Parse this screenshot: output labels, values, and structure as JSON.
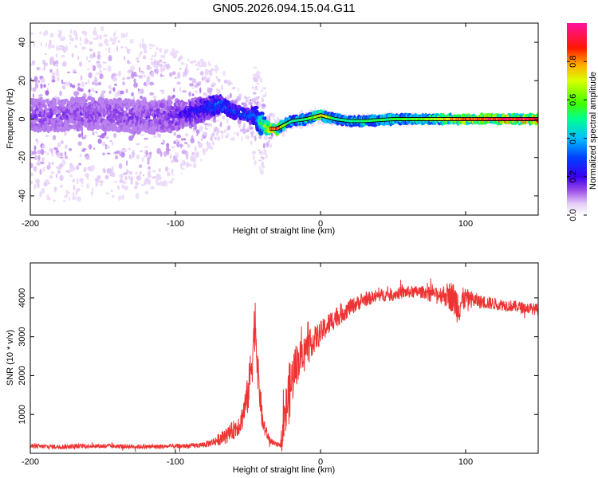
{
  "chart_data": [
    {
      "type": "heatmap",
      "title": "GN05.2026.094.15.04.G11",
      "xlabel": "Height of straight line (km)",
      "ylabel": "Frequency (Hz)",
      "xlim": [
        -200,
        150
      ],
      "ylim": [
        -50,
        50
      ],
      "xticks": [
        -200,
        -100,
        0,
        100
      ],
      "xtick_labels": [
        "-200",
        "-100",
        "0",
        "100"
      ],
      "yticks": [
        -40,
        -20,
        0,
        20,
        40
      ],
      "ytick_labels": [
        "-40",
        "-20",
        "0",
        "20",
        "40"
      ],
      "colorbar": {
        "label": "Normalized spectral amplitude",
        "range": [
          0,
          1
        ],
        "ticks": [
          0.0,
          0.2,
          0.4,
          0.6,
          0.8
        ],
        "tick_labels": [
          "0.0",
          "0.2",
          "0.4",
          "0.6",
          "0.8"
        ]
      },
      "main_band": {
        "x": [
          -200,
          -180,
          -160,
          -140,
          -120,
          -100,
          -80,
          -70,
          -60,
          -50,
          -45,
          -40,
          -35,
          -30,
          -25,
          -20,
          -10,
          0,
          10,
          20,
          30,
          50,
          70,
          90,
          110,
          130,
          150
        ],
        "center_freq": [
          2,
          2,
          3,
          2,
          1,
          2,
          5,
          8,
          4,
          2,
          2,
          -3,
          -5,
          -5,
          -3,
          -1,
          0,
          2,
          0,
          -1,
          -1,
          0,
          0,
          0,
          0,
          0,
          0
        ],
        "amplitude": [
          0.15,
          0.15,
          0.15,
          0.15,
          0.15,
          0.18,
          0.25,
          0.35,
          0.3,
          0.35,
          0.3,
          0.55,
          0.9,
          0.85,
          0.6,
          0.5,
          0.55,
          0.75,
          0.5,
          0.5,
          0.55,
          0.55,
          0.6,
          0.8,
          0.9,
          0.95,
          0.95
        ],
        "scatter_halfwidth_hz": [
          45,
          45,
          45,
          45,
          40,
          35,
          25,
          20,
          15,
          12,
          25,
          25,
          10,
          6,
          5,
          4,
          4,
          4,
          3,
          3,
          3,
          3,
          2,
          2,
          2,
          2,
          2
        ]
      }
    },
    {
      "type": "line",
      "xlabel": "Height of straight line (km)",
      "ylabel": "SNR (10 * v/v)",
      "xlim": [
        -200,
        150
      ],
      "ylim": [
        0,
        4900
      ],
      "xticks": [
        -200,
        -100,
        0,
        100
      ],
      "xtick_labels": [
        "-200",
        "-100",
        "0",
        "100"
      ],
      "yticks": [
        1000,
        2000,
        3000,
        4000
      ],
      "ytick_labels": [
        "1000",
        "2000",
        "3000",
        "4000"
      ],
      "color": "#ee3333",
      "series": [
        {
          "name": "SNR",
          "x": [
            -200,
            -180,
            -160,
            -140,
            -120,
            -100,
            -90,
            -80,
            -75,
            -70,
            -65,
            -60,
            -55,
            -50,
            -47,
            -45,
            -43,
            -40,
            -37,
            -35,
            -32,
            -28,
            -25,
            -22,
            -20,
            -18,
            -15,
            -12,
            -10,
            -5,
            0,
            5,
            10,
            15,
            20,
            25,
            30,
            40,
            50,
            60,
            70,
            80,
            90,
            95,
            100,
            110,
            120,
            130,
            140,
            150
          ],
          "y": [
            180,
            170,
            190,
            180,
            170,
            180,
            190,
            220,
            280,
            350,
            450,
            600,
            800,
            1500,
            2500,
            3500,
            2000,
            800,
            500,
            350,
            250,
            200,
            800,
            1500,
            1800,
            2200,
            2400,
            2600,
            2700,
            2900,
            3100,
            3300,
            3500,
            3600,
            3750,
            3850,
            3950,
            4050,
            4100,
            4150,
            4150,
            4100,
            4050,
            3800,
            4000,
            3900,
            3850,
            3800,
            3750,
            3700
          ],
          "noise_amplitude": [
            60,
            60,
            60,
            60,
            60,
            60,
            60,
            80,
            100,
            150,
            200,
            250,
            300,
            500,
            700,
            700,
            500,
            300,
            150,
            100,
            60,
            60,
            600,
            800,
            700,
            600,
            500,
            400,
            400,
            350,
            300,
            300,
            280,
            250,
            220,
            200,
            180,
            170,
            160,
            160,
            160,
            160,
            400,
            500,
            250,
            180,
            160,
            150,
            150,
            150
          ]
        }
      ]
    }
  ]
}
